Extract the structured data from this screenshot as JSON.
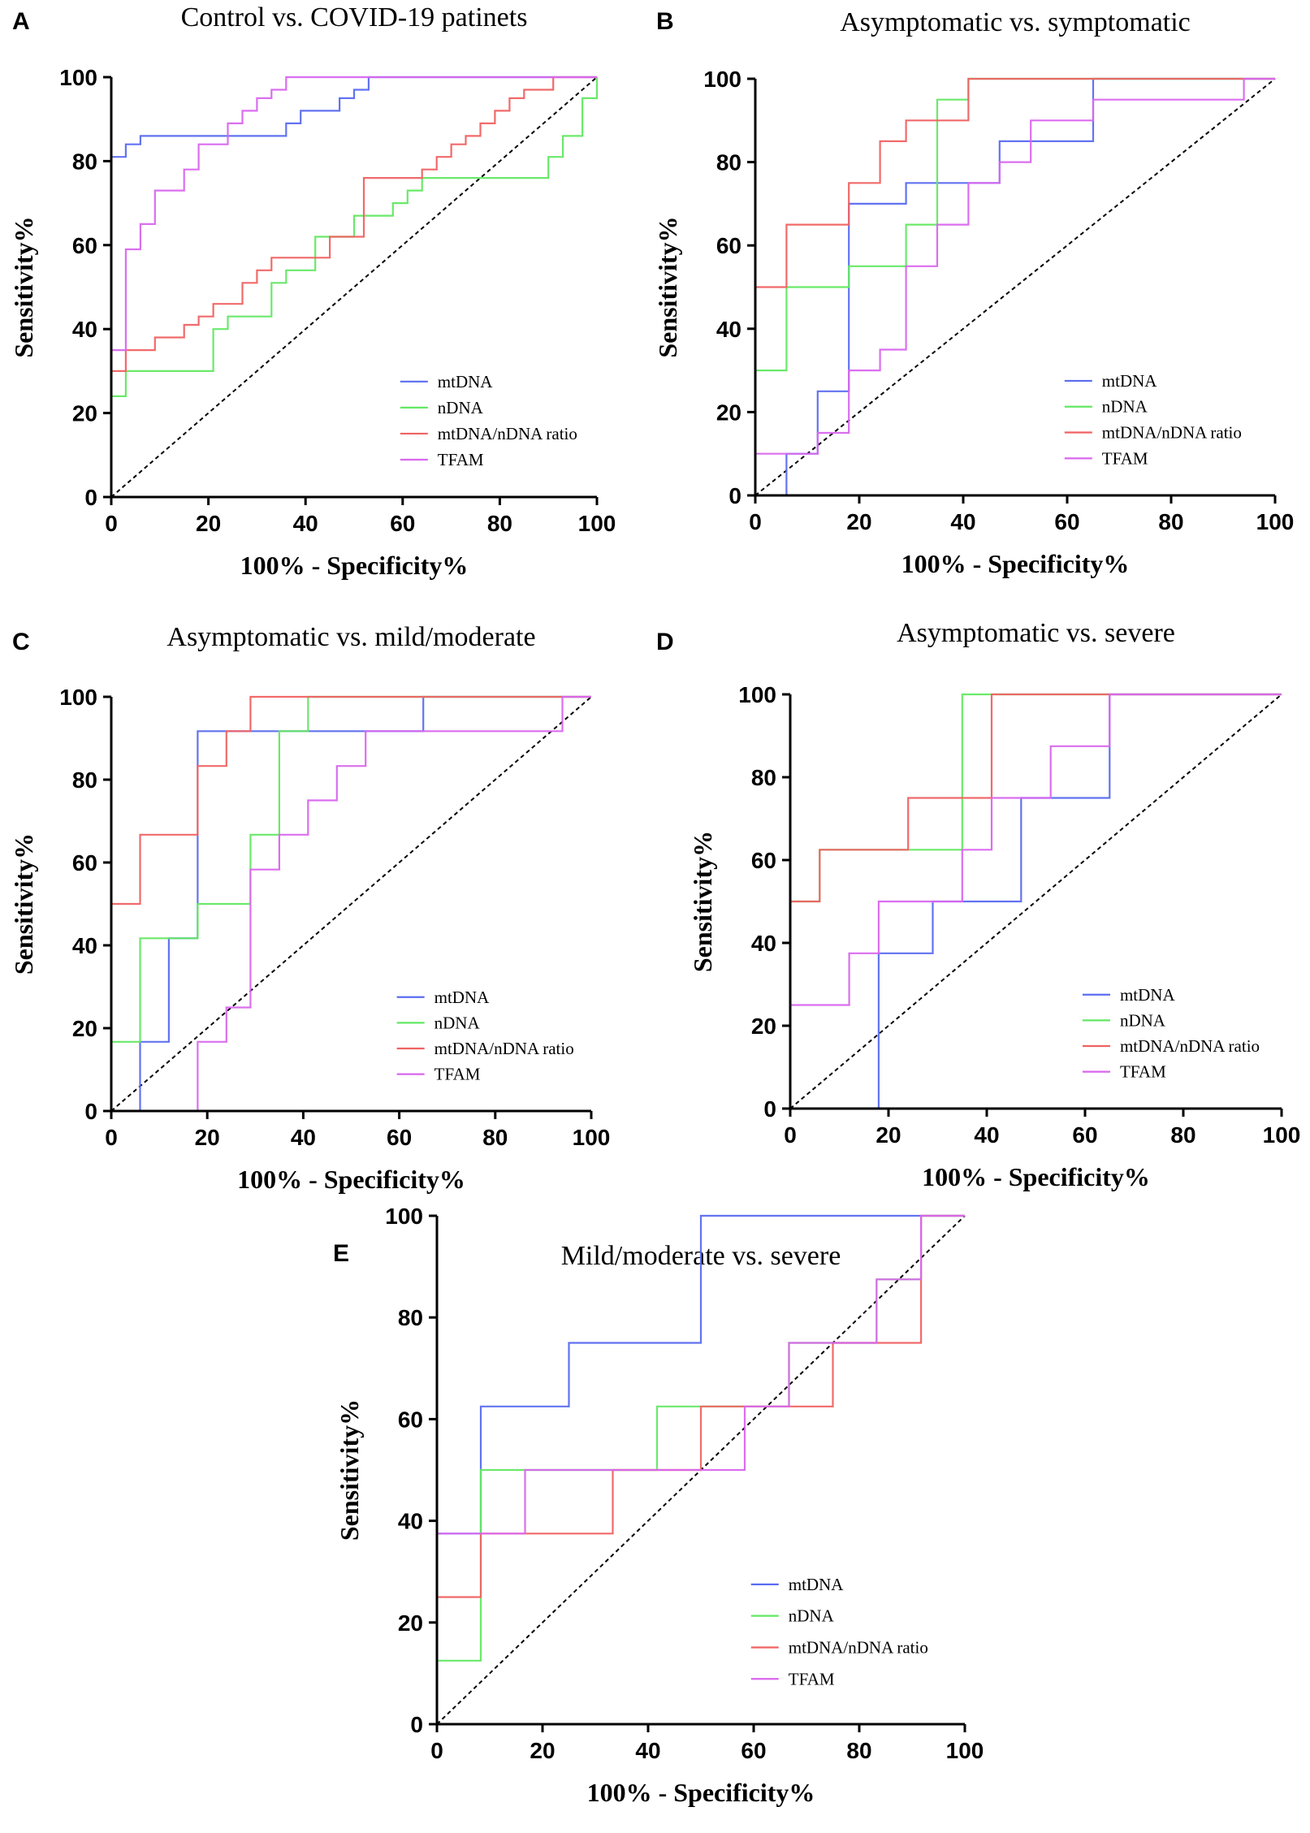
{
  "series_colors": {
    "mtDNA": "#5a6cf0",
    "nDNA": "#62e862",
    "mtDNA/nDNA ratio": "#f06262",
    "TFAM": "#d966ee"
  },
  "reference_line_color": "#000000",
  "chart_data": [
    {
      "panel": "A",
      "type": "line",
      "title": "Control vs. COVID-19 patinets",
      "xlabel": "100% - Specificity%",
      "ylabel": "Sensitivity%",
      "xlim": [
        0,
        100
      ],
      "ylim": [
        0,
        100
      ],
      "xticks": [
        "0",
        "20",
        "40",
        "60",
        "80",
        "100"
      ],
      "yticks": [
        "0",
        "20",
        "40",
        "60",
        "80",
        "100"
      ],
      "legend_position": "bottom-right",
      "series": [
        {
          "name": "mtDNA",
          "x": [
            0,
            0,
            0,
            3,
            3,
            6,
            6,
            36,
            36,
            39,
            39,
            47,
            47,
            50,
            50,
            53,
            53,
            100
          ],
          "y": [
            0,
            30,
            81,
            81,
            84,
            84,
            86,
            86,
            89,
            89,
            92,
            92,
            95,
            95,
            97,
            97,
            100,
            100
          ]
        },
        {
          "name": "nDNA",
          "x": [
            0,
            0,
            3,
            3,
            21,
            21,
            24,
            24,
            33,
            33,
            36,
            36,
            42,
            42,
            50,
            50,
            58,
            58,
            61,
            61,
            64,
            64,
            90,
            90,
            93,
            93,
            97,
            97,
            100,
            100
          ],
          "y": [
            0,
            24,
            24,
            30,
            30,
            40,
            40,
            43,
            43,
            51,
            51,
            54,
            54,
            62,
            62,
            67,
            67,
            70,
            70,
            73,
            73,
            76,
            76,
            81,
            81,
            86,
            86,
            95,
            95,
            100
          ]
        },
        {
          "name": "mtDNA/nDNA ratio",
          "x": [
            0,
            0,
            3,
            3,
            9,
            9,
            15,
            15,
            18,
            18,
            21,
            21,
            27,
            27,
            30,
            30,
            33,
            33,
            45,
            45,
            52,
            52,
            64,
            64,
            67,
            67,
            70,
            70,
            73,
            73,
            76,
            76,
            79,
            79,
            82,
            82,
            85,
            85,
            91,
            91,
            100
          ],
          "y": [
            0,
            30,
            30,
            35,
            35,
            38,
            38,
            41,
            41,
            43,
            43,
            46,
            46,
            51,
            51,
            54,
            54,
            57,
            57,
            62,
            62,
            76,
            76,
            78,
            78,
            81,
            81,
            84,
            84,
            86,
            86,
            89,
            89,
            92,
            92,
            95,
            95,
            97,
            97,
            100,
            100
          ]
        },
        {
          "name": "TFAM",
          "x": [
            0,
            0,
            3,
            3,
            6,
            6,
            9,
            9,
            15,
            15,
            18,
            18,
            24,
            24,
            27,
            27,
            30,
            30,
            33,
            33,
            36,
            36,
            39,
            39,
            100
          ],
          "y": [
            0,
            35,
            35,
            59,
            59,
            65,
            65,
            73,
            73,
            78,
            78,
            84,
            84,
            89,
            89,
            92,
            92,
            95,
            95,
            97,
            97,
            100,
            100,
            100,
            100
          ]
        }
      ]
    },
    {
      "panel": "B",
      "type": "line",
      "title": "Asymptomatic vs. symptomatic",
      "xlabel": "100% - Specificity%",
      "ylabel": "Sensitivity%",
      "xlim": [
        0,
        100
      ],
      "ylim": [
        0,
        100
      ],
      "xticks": [
        "0",
        "20",
        "40",
        "60",
        "80",
        "100"
      ],
      "yticks": [
        "0",
        "20",
        "40",
        "60",
        "80",
        "100"
      ],
      "legend_position": "bottom-right",
      "series": [
        {
          "name": "mtDNA",
          "x": [
            0,
            6,
            6,
            12,
            12,
            18,
            18,
            29,
            29,
            47,
            47,
            65,
            65,
            100
          ],
          "y": [
            0,
            0,
            10,
            10,
            25,
            25,
            70,
            70,
            75,
            75,
            85,
            85,
            100,
            100
          ]
        },
        {
          "name": "nDNA",
          "x": [
            0,
            0,
            6,
            6,
            18,
            18,
            29,
            29,
            35,
            35,
            41,
            41,
            100
          ],
          "y": [
            0,
            30,
            30,
            50,
            50,
            55,
            55,
            65,
            65,
            95,
            95,
            100,
            100
          ]
        },
        {
          "name": "mtDNA/nDNA ratio",
          "x": [
            0,
            0,
            6,
            6,
            18,
            18,
            24,
            24,
            29,
            29,
            41,
            41,
            100
          ],
          "y": [
            0,
            50,
            50,
            65,
            65,
            75,
            75,
            85,
            85,
            90,
            90,
            100,
            100
          ]
        },
        {
          "name": "TFAM",
          "x": [
            0,
            0,
            12,
            12,
            18,
            18,
            24,
            24,
            29,
            29,
            35,
            35,
            41,
            41,
            47,
            47,
            53,
            53,
            65,
            65,
            94,
            94,
            100
          ],
          "y": [
            0,
            10,
            10,
            15,
            15,
            30,
            30,
            35,
            35,
            55,
            55,
            65,
            65,
            75,
            75,
            80,
            80,
            90,
            90,
            95,
            95,
            100,
            100
          ]
        }
      ]
    },
    {
      "panel": "C",
      "type": "line",
      "title": "Asymptomatic vs. mild/moderate",
      "xlabel": "100% - Specificity%",
      "ylabel": "Sensitivity%",
      "xlim": [
        0,
        100
      ],
      "ylim": [
        0,
        100
      ],
      "xticks": [
        "0",
        "20",
        "40",
        "60",
        "80",
        "100"
      ],
      "yticks": [
        "0",
        "20",
        "40",
        "60",
        "80",
        "100"
      ],
      "legend_position": "bottom-right",
      "series": [
        {
          "name": "mtDNA",
          "x": [
            0,
            6,
            6,
            12,
            12,
            18,
            18,
            65,
            65,
            100
          ],
          "y": [
            0,
            0,
            16.7,
            16.7,
            41.7,
            41.7,
            91.7,
            91.7,
            100,
            100
          ]
        },
        {
          "name": "nDNA",
          "x": [
            0,
            0,
            6,
            6,
            18,
            18,
            29,
            29,
            35,
            35,
            41,
            41,
            100
          ],
          "y": [
            0,
            16.7,
            16.7,
            41.7,
            41.7,
            50,
            50,
            66.7,
            66.7,
            91.7,
            91.7,
            100,
            100
          ]
        },
        {
          "name": "mtDNA/nDNA ratio",
          "x": [
            0,
            0,
            6,
            6,
            18,
            18,
            24,
            24,
            29,
            29,
            100
          ],
          "y": [
            0,
            50,
            50,
            66.7,
            66.7,
            83.3,
            83.3,
            91.7,
            91.7,
            100,
            100
          ]
        },
        {
          "name": "TFAM",
          "x": [
            0,
            18,
            18,
            24,
            24,
            29,
            29,
            35,
            35,
            41,
            41,
            47,
            47,
            53,
            53,
            94,
            94,
            100
          ],
          "y": [
            0,
            0,
            16.7,
            16.7,
            25,
            25,
            58.3,
            58.3,
            66.7,
            66.7,
            75,
            75,
            83.3,
            83.3,
            91.7,
            91.7,
            100,
            100
          ]
        }
      ]
    },
    {
      "panel": "D",
      "type": "line",
      "title": "Asymptomatic vs. severe",
      "xlabel": "100% - Specificity%",
      "ylabel": "Sensitivity%",
      "xlim": [
        0,
        100
      ],
      "ylim": [
        0,
        100
      ],
      "xticks": [
        "0",
        "20",
        "40",
        "60",
        "80",
        "100"
      ],
      "yticks": [
        "0",
        "20",
        "40",
        "60",
        "80",
        "100"
      ],
      "legend_position": "bottom-right",
      "series": [
        {
          "name": "mtDNA",
          "x": [
            0,
            18,
            18,
            29,
            29,
            47,
            47,
            65,
            65,
            100
          ],
          "y": [
            0,
            0,
            37.5,
            37.5,
            50,
            50,
            75,
            75,
            100,
            100
          ]
        },
        {
          "name": "nDNA",
          "x": [
            0,
            0,
            6,
            6,
            35,
            35,
            100
          ],
          "y": [
            0,
            50,
            50,
            62.5,
            62.5,
            100,
            100
          ]
        },
        {
          "name": "mtDNA/nDNA ratio",
          "x": [
            0,
            0,
            6,
            6,
            24,
            24,
            41,
            41,
            100
          ],
          "y": [
            0,
            50,
            50,
            62.5,
            62.5,
            75,
            75,
            100,
            100
          ]
        },
        {
          "name": "TFAM",
          "x": [
            0,
            0,
            6,
            6,
            12,
            12,
            18,
            18,
            35,
            35,
            41,
            41,
            53,
            53,
            65,
            65,
            100
          ],
          "y": [
            0,
            25,
            25,
            25,
            25,
            37.5,
            37.5,
            50,
            50,
            62.5,
            62.5,
            75,
            75,
            87.5,
            87.5,
            100,
            100
          ]
        }
      ]
    },
    {
      "panel": "E",
      "type": "line",
      "title": "Mild/moderate vs. severe",
      "xlabel": "100% - Specificity%",
      "ylabel": "Sensitivity%",
      "xlim": [
        0,
        100
      ],
      "ylim": [
        0,
        100
      ],
      "xticks": [
        "0",
        "20",
        "40",
        "60",
        "80",
        "100"
      ],
      "yticks": [
        "0",
        "20",
        "40",
        "60",
        "80",
        "100"
      ],
      "legend_position": "bottom-right",
      "series": [
        {
          "name": "mtDNA",
          "x": [
            0,
            0,
            8.3,
            8.3,
            25,
            25,
            50,
            50,
            100
          ],
          "y": [
            0,
            37.5,
            37.5,
            62.5,
            62.5,
            75,
            75,
            100,
            100
          ]
        },
        {
          "name": "nDNA",
          "x": [
            0,
            0,
            8.3,
            8.3,
            41.7,
            41.7,
            58.3,
            58.3,
            66.7,
            66.7,
            83.3,
            83.3,
            91.7,
            91.7,
            100
          ],
          "y": [
            0,
            12.5,
            12.5,
            50,
            50,
            62.5,
            62.5,
            62.5,
            62.5,
            75,
            75,
            87.5,
            87.5,
            100,
            100
          ]
        },
        {
          "name": "mtDNA/nDNA ratio",
          "x": [
            0,
            0,
            8.3,
            8.3,
            33.3,
            33.3,
            50,
            50,
            75,
            75,
            91.7,
            91.7,
            100
          ],
          "y": [
            0,
            25,
            25,
            37.5,
            37.5,
            50,
            50,
            62.5,
            62.5,
            75,
            75,
            100,
            100
          ]
        },
        {
          "name": "TFAM",
          "x": [
            0,
            0,
            16.7,
            16.7,
            58.3,
            58.3,
            66.7,
            66.7,
            83.3,
            83.3,
            91.7,
            91.7,
            100
          ],
          "y": [
            0,
            37.5,
            37.5,
            50,
            50,
            62.5,
            62.5,
            75,
            75,
            87.5,
            87.5,
            100,
            100
          ]
        }
      ]
    }
  ]
}
